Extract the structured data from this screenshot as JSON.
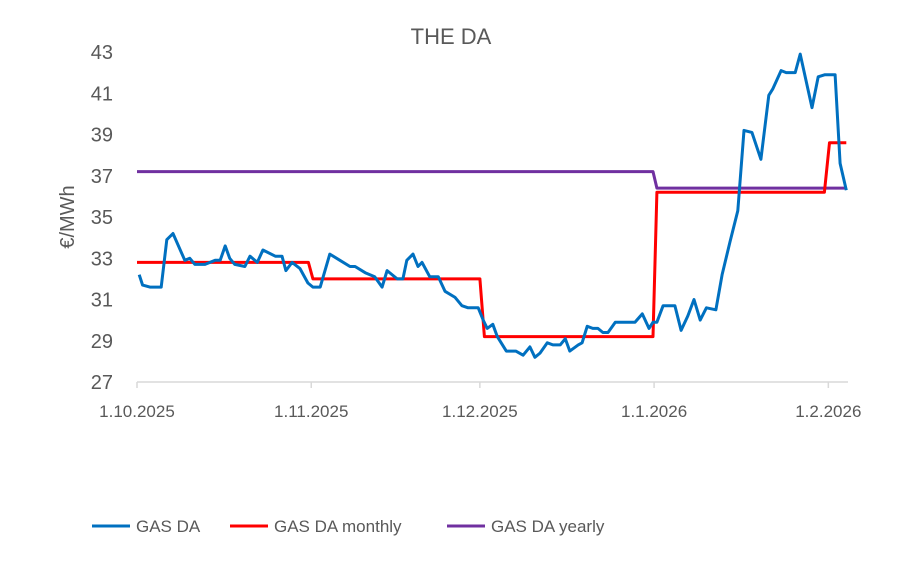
{
  "chart_data": {
    "type": "line",
    "title": "THE DA",
    "ylabel": "€/MWh",
    "xlabel": "",
    "x_unit": "days since 1.10.2025",
    "xlim": [
      0,
      126.5
    ],
    "ylim": [
      27,
      43
    ],
    "yticks": [
      27,
      29,
      31,
      33,
      35,
      37,
      39,
      41,
      43
    ],
    "xticks": [
      {
        "x": 0,
        "label": "1.10.2025"
      },
      {
        "x": 31,
        "label": "1.11.2025"
      },
      {
        "x": 61,
        "label": "1.12.2025"
      },
      {
        "x": 92,
        "label": "1.1.2026"
      },
      {
        "x": 123,
        "label": "1.2.2026"
      }
    ],
    "grid": false,
    "legend_position": "bottom",
    "series": [
      {
        "name": "GAS DA",
        "color": "#0070C0",
        "points": [
          [
            0.4,
            32.2
          ],
          [
            1,
            31.7
          ],
          [
            2.3,
            31.6
          ],
          [
            4.3,
            31.6
          ],
          [
            5.3,
            33.9
          ],
          [
            6.4,
            34.2
          ],
          [
            8.5,
            32.9
          ],
          [
            9.4,
            33.0
          ],
          [
            10.3,
            32.7
          ],
          [
            12.1,
            32.7
          ],
          [
            13.9,
            32.9
          ],
          [
            14.8,
            32.9
          ],
          [
            15.7,
            33.6
          ],
          [
            16.5,
            33.0
          ],
          [
            17.4,
            32.7
          ],
          [
            19.2,
            32.6
          ],
          [
            20.1,
            33.1
          ],
          [
            21.4,
            32.8
          ],
          [
            22.4,
            33.4
          ],
          [
            24.6,
            33.1
          ],
          [
            25.8,
            33.1
          ],
          [
            26.5,
            32.4
          ],
          [
            27.6,
            32.8
          ],
          [
            29,
            32.5
          ],
          [
            30.4,
            31.8
          ],
          [
            31.3,
            31.6
          ],
          [
            32.6,
            31.6
          ],
          [
            34.3,
            33.2
          ],
          [
            36.1,
            32.9
          ],
          [
            37.9,
            32.6
          ],
          [
            38.8,
            32.6
          ],
          [
            40.6,
            32.3
          ],
          [
            42.3,
            32.1
          ],
          [
            43.6,
            31.6
          ],
          [
            44.5,
            32.4
          ],
          [
            46.3,
            32.0
          ],
          [
            47.3,
            32.0
          ],
          [
            48,
            32.9
          ],
          [
            49.1,
            33.2
          ],
          [
            50,
            32.6
          ],
          [
            50.7,
            32.8
          ],
          [
            52.1,
            32.1
          ],
          [
            53.6,
            32.1
          ],
          [
            54.8,
            31.4
          ],
          [
            56.6,
            31.1
          ],
          [
            57.8,
            30.7
          ],
          [
            58.9,
            30.6
          ],
          [
            60.7,
            30.6
          ],
          [
            61.6,
            30.0
          ],
          [
            62.3,
            29.6
          ],
          [
            63.3,
            29.8
          ],
          [
            64.1,
            29.2
          ],
          [
            65.7,
            28.5
          ],
          [
            67.4,
            28.5
          ],
          [
            68.7,
            28.3
          ],
          [
            69.9,
            28.7
          ],
          [
            70.8,
            28.2
          ],
          [
            71.7,
            28.4
          ],
          [
            73,
            28.9
          ],
          [
            74,
            28.8
          ],
          [
            75.3,
            28.8
          ],
          [
            76.2,
            29.1
          ],
          [
            77,
            28.5
          ],
          [
            78.5,
            28.8
          ],
          [
            79.2,
            28.9
          ],
          [
            80.1,
            29.7
          ],
          [
            81.1,
            29.6
          ],
          [
            82,
            29.6
          ],
          [
            82.9,
            29.4
          ],
          [
            83.8,
            29.4
          ],
          [
            85.1,
            29.9
          ],
          [
            88.6,
            29.9
          ],
          [
            89.9,
            30.3
          ],
          [
            91.1,
            29.6
          ],
          [
            91.8,
            29.9
          ],
          [
            92.5,
            29.9
          ],
          [
            93.6,
            30.7
          ],
          [
            95.7,
            30.7
          ],
          [
            96.8,
            29.5
          ],
          [
            98,
            30.2
          ],
          [
            99.1,
            31.0
          ],
          [
            100.2,
            30.0
          ],
          [
            101.3,
            30.6
          ],
          [
            103,
            30.5
          ],
          [
            104.1,
            32.2
          ],
          [
            105.5,
            33.8
          ],
          [
            106.9,
            35.3
          ],
          [
            108,
            39.2
          ],
          [
            109.4,
            39.1
          ],
          [
            111,
            37.8
          ],
          [
            112.4,
            40.9
          ],
          [
            113.1,
            41.2
          ],
          [
            114.6,
            42.1
          ],
          [
            115.5,
            42.0
          ],
          [
            117.1,
            42.0
          ],
          [
            118,
            42.9
          ],
          [
            120.1,
            40.3
          ],
          [
            121.2,
            41.8
          ],
          [
            122.4,
            41.9
          ],
          [
            124.2,
            41.9
          ],
          [
            125.1,
            37.6
          ],
          [
            126.2,
            36.3
          ]
        ]
      },
      {
        "name": "GAS DA monthly",
        "color": "#FF0000",
        "points": [
          [
            0,
            32.8
          ],
          [
            30.5,
            32.8
          ],
          [
            31.3,
            32.0
          ],
          [
            61,
            32.0
          ],
          [
            61.8,
            29.2
          ],
          [
            91.8,
            29.2
          ],
          [
            92.5,
            36.2
          ],
          [
            122.3,
            36.2
          ],
          [
            123.2,
            38.6
          ],
          [
            126.2,
            38.6
          ]
        ]
      },
      {
        "name": "GAS DA yearly",
        "color": "#7030A0",
        "points": [
          [
            0,
            37.2
          ],
          [
            91.8,
            37.2
          ],
          [
            92.5,
            36.4
          ],
          [
            126.2,
            36.4
          ]
        ]
      }
    ]
  }
}
